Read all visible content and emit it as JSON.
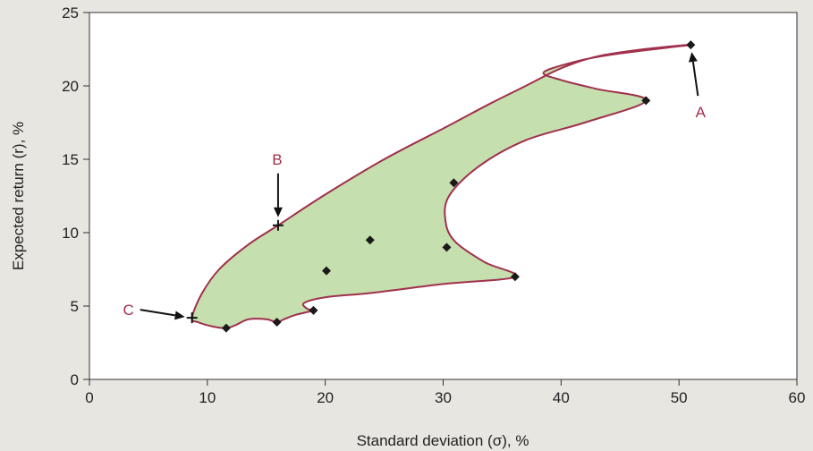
{
  "chart_data": {
    "type": "scatter",
    "title": "",
    "xlabel": "Standard deviation (σ), %",
    "ylabel": "Expected return (r), %",
    "xlim": [
      0,
      60
    ],
    "ylim": [
      0,
      25
    ],
    "x_ticks": [
      0,
      10,
      20,
      30,
      40,
      50,
      60
    ],
    "y_ticks": [
      0,
      5,
      10,
      15,
      20,
      25
    ],
    "grid": false,
    "colors": {
      "region_fill": "#c5dfae",
      "boundary": "#a0304c",
      "marker": "#1a1a1a",
      "annotation": "#a0304c",
      "plot_background": "#ffffff",
      "page_background": "#e8e6e0"
    },
    "points": [
      {
        "x": 51.0,
        "y": 22.8
      },
      {
        "x": 47.2,
        "y": 19.0
      },
      {
        "x": 30.9,
        "y": 13.4
      },
      {
        "x": 23.8,
        "y": 9.5
      },
      {
        "x": 30.3,
        "y": 9.0
      },
      {
        "x": 20.1,
        "y": 7.4
      },
      {
        "x": 36.1,
        "y": 7.0
      },
      {
        "x": 19.0,
        "y": 4.7
      },
      {
        "x": 15.9,
        "y": 3.9
      },
      {
        "x": 11.6,
        "y": 3.5
      }
    ],
    "feasible_boundary": [
      [
        8.7,
        4.2
      ],
      [
        9.5,
        5.8
      ],
      [
        11.0,
        7.5
      ],
      [
        13.5,
        9.2
      ],
      [
        16.0,
        10.5
      ],
      [
        20.0,
        12.6
      ],
      [
        25.0,
        15.0
      ],
      [
        30.0,
        17.1
      ],
      [
        34.0,
        18.8
      ],
      [
        37.0,
        20.0
      ],
      [
        40.0,
        21.2
      ],
      [
        43.0,
        22.0
      ],
      [
        47.0,
        22.5
      ],
      [
        51.0,
        22.8
      ],
      [
        44.0,
        22.1
      ],
      [
        40.5,
        21.5
      ],
      [
        38.5,
        20.9
      ],
      [
        40.0,
        20.4
      ],
      [
        43.0,
        19.8
      ],
      [
        47.2,
        19.0
      ],
      [
        42.0,
        17.5
      ],
      [
        37.0,
        16.3
      ],
      [
        33.0,
        14.5
      ],
      [
        30.5,
        12.5
      ],
      [
        30.2,
        10.8
      ],
      [
        31.0,
        9.4
      ],
      [
        33.5,
        8.0
      ],
      [
        36.1,
        7.0
      ],
      [
        30.0,
        6.5
      ],
      [
        24.0,
        5.9
      ],
      [
        20.0,
        5.6
      ],
      [
        18.2,
        5.2
      ],
      [
        18.5,
        4.8
      ],
      [
        19.0,
        4.7
      ],
      [
        17.5,
        4.4
      ],
      [
        16.5,
        4.1
      ],
      [
        15.9,
        3.9
      ],
      [
        15.0,
        4.1
      ],
      [
        13.5,
        4.1
      ],
      [
        12.4,
        3.7
      ],
      [
        11.6,
        3.5
      ],
      [
        10.5,
        3.6
      ],
      [
        9.2,
        3.9
      ],
      [
        8.7,
        4.2
      ]
    ],
    "annotations": [
      {
        "label": "A",
        "x": 51.0,
        "y": 22.8
      },
      {
        "label": "B",
        "x": 16.0,
        "y": 10.5
      },
      {
        "label": "C",
        "x": 8.7,
        "y": 4.2
      }
    ]
  }
}
